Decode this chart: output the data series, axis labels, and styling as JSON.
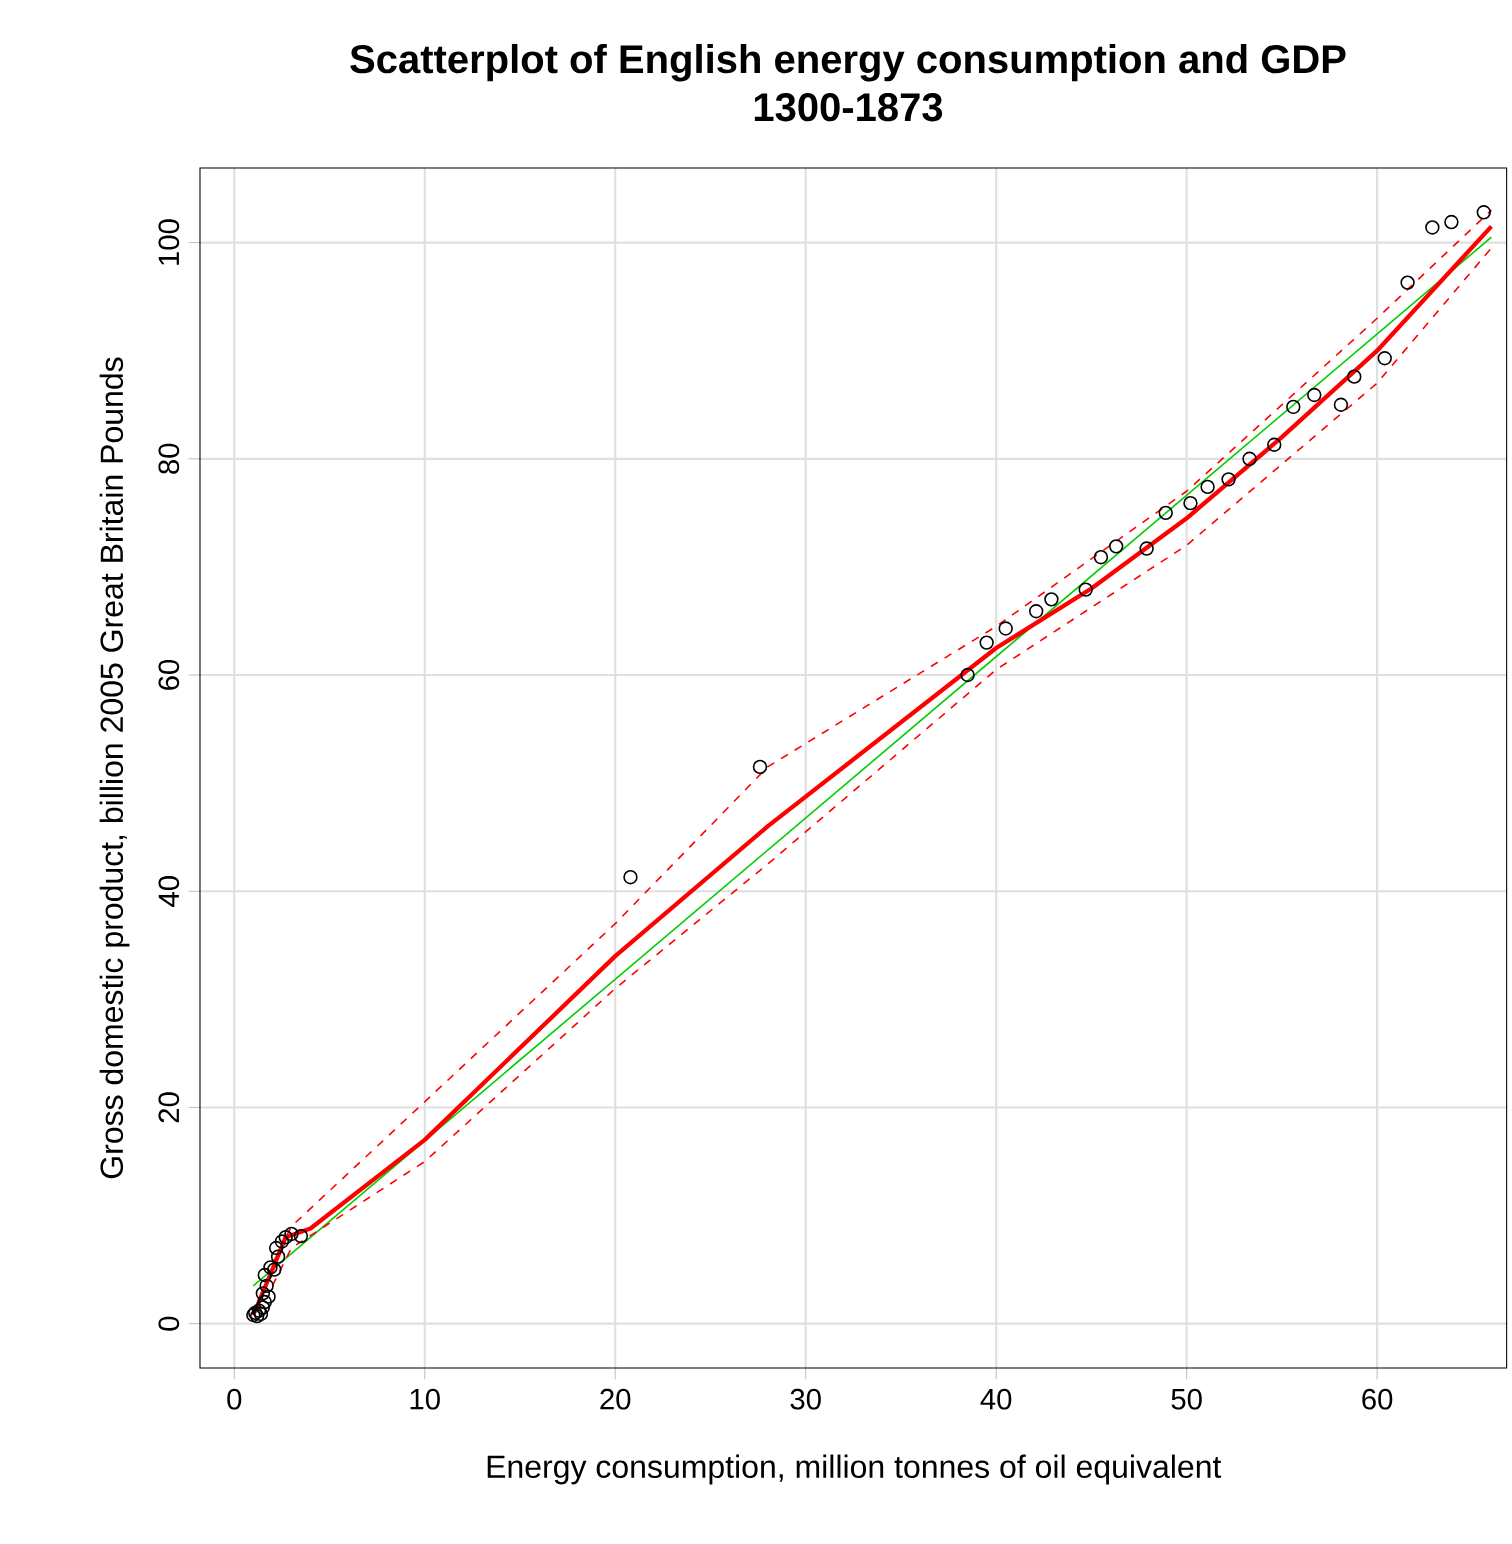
{
  "chart_data": {
    "type": "scatter",
    "title": "Scatterplot of English energy consumption and GDP",
    "subtitle": "1300-1873",
    "xlabel": "Energy consumption, million tonnes of oil equivalent",
    "ylabel": "Gross domestic product, billion 2005 Great Britain Pounds",
    "xlim": [
      -1.8,
      66.8
    ],
    "ylim": [
      -4.1,
      106.9
    ],
    "xticks": [
      0,
      10,
      20,
      30,
      40,
      50,
      60
    ],
    "yticks": [
      0,
      20,
      40,
      60,
      80,
      100
    ],
    "grid": true,
    "marker": "circle",
    "series": [
      {
        "color": "#000000",
        "x": [
          1.0,
          1.1,
          1.2,
          1.3,
          1.4,
          1.5,
          1.6,
          1.5,
          1.7,
          1.6,
          1.9,
          2.1,
          2.3,
          2.2,
          2.5,
          2.7,
          3.0,
          3.5,
          1.8,
          20.8,
          27.6,
          38.5,
          39.5,
          40.5,
          42.1,
          42.9,
          44.7,
          45.5,
          46.3,
          47.9,
          48.9,
          50.2,
          51.1,
          52.2,
          53.3,
          54.6,
          55.6,
          56.7,
          58.1,
          58.8,
          60.4,
          61.6,
          62.9,
          63.9,
          65.6
        ],
        "values": [
          0.8,
          1.0,
          0.7,
          1.2,
          0.9,
          1.5,
          2.0,
          2.8,
          3.5,
          4.5,
          5.2,
          5.0,
          6.2,
          7.0,
          7.6,
          8.0,
          8.3,
          8.1,
          2.5,
          41.3,
          51.5,
          60.0,
          63.0,
          64.3,
          65.9,
          67.0,
          67.9,
          70.9,
          71.9,
          71.7,
          75.0,
          75.9,
          77.4,
          78.1,
          80.0,
          81.3,
          84.8,
          85.9,
          85.0,
          87.6,
          89.3,
          96.3,
          101.4,
          101.9,
          102.8
        ]
      },
      {
        "type": "line",
        "color": "#00cc00",
        "marker": "none",
        "line_style": "solid",
        "x": [
          1,
          66
        ],
        "values": [
          3.5,
          100.5
        ]
      },
      {
        "type": "line",
        "color": "#ff0000",
        "marker": "none",
        "line_style": "solid",
        "x": [
          1,
          2,
          2.7,
          4,
          10,
          20,
          28,
          40,
          45,
          50,
          55,
          60,
          66
        ],
        "values": [
          0.8,
          5,
          8,
          8.8,
          17,
          34,
          46,
          62.5,
          68,
          74.5,
          82,
          90,
          101.5
        ]
      },
      {
        "type": "line",
        "color": "#ff0000",
        "marker": "none",
        "line_style": "dashed",
        "x": [
          2,
          3,
          20,
          28,
          40,
          50,
          60,
          66
        ],
        "values": [
          5.5,
          9,
          37,
          51.5,
          64.5,
          77,
          93,
          103
        ]
      },
      {
        "type": "line",
        "color": "#ff0000",
        "marker": "none",
        "line_style": "dashed",
        "x": [
          2,
          3,
          10,
          20,
          28,
          40,
          50,
          60,
          66
        ],
        "values": [
          3.5,
          7,
          15,
          31,
          42.5,
          60.5,
          72,
          87,
          99.5
        ]
      }
    ]
  }
}
